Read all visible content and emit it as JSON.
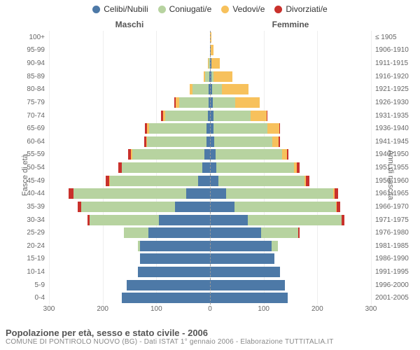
{
  "chart": {
    "type": "population-pyramid",
    "header_male": "Maschi",
    "header_female": "Femmine",
    "axis_left_label": "Fasce di età",
    "axis_right_label": "Anni di nascita",
    "x_max": 300,
    "x_ticks_left": [
      300,
      200,
      100,
      0
    ],
    "x_ticks_right": [
      0,
      100,
      200,
      300
    ],
    "colors": {
      "single": "#4d79a7",
      "married": "#b7d3a0",
      "widowed": "#f7c15c",
      "divorced": "#c9312c",
      "grid": "#eeeeee",
      "centerline": "#999999",
      "background": "#ffffff",
      "text": "#666666"
    },
    "legend": [
      {
        "label": "Celibi/Nubili",
        "color_key": "single"
      },
      {
        "label": "Coniugati/e",
        "color_key": "married"
      },
      {
        "label": "Vedovi/e",
        "color_key": "widowed"
      },
      {
        "label": "Divorziati/e",
        "color_key": "divorced"
      }
    ],
    "age_labels": [
      "100+",
      "95-99",
      "90-94",
      "85-89",
      "80-84",
      "75-79",
      "70-74",
      "65-69",
      "60-64",
      "55-59",
      "50-54",
      "45-49",
      "40-44",
      "35-39",
      "30-34",
      "25-29",
      "20-24",
      "15-19",
      "10-14",
      "5-9",
      "0-4"
    ],
    "birth_labels": [
      "≤ 1905",
      "1906-1910",
      "1911-1915",
      "1916-1920",
      "1921-1925",
      "1926-1930",
      "1931-1935",
      "1936-1940",
      "1941-1945",
      "1946-1950",
      "1951-1955",
      "1956-1960",
      "1961-1965",
      "1966-1970",
      "1971-1975",
      "1976-1980",
      "1981-1985",
      "1986-1990",
      "1991-1995",
      "1996-2000",
      "2001-2005"
    ],
    "rows": [
      {
        "m": {
          "s": 0,
          "c": 0,
          "w": 0,
          "d": 0
        },
        "f": {
          "s": 0,
          "c": 0,
          "w": 2,
          "d": 0
        }
      },
      {
        "m": {
          "s": 0,
          "c": 0,
          "w": 0,
          "d": 0
        },
        "f": {
          "s": 1,
          "c": 0,
          "w": 6,
          "d": 0
        }
      },
      {
        "m": {
          "s": 0,
          "c": 2,
          "w": 2,
          "d": 0
        },
        "f": {
          "s": 2,
          "c": 1,
          "w": 15,
          "d": 0
        }
      },
      {
        "m": {
          "s": 1,
          "c": 8,
          "w": 3,
          "d": 0
        },
        "f": {
          "s": 3,
          "c": 4,
          "w": 35,
          "d": 0
        }
      },
      {
        "m": {
          "s": 2,
          "c": 30,
          "w": 6,
          "d": 0
        },
        "f": {
          "s": 4,
          "c": 18,
          "w": 50,
          "d": 0
        }
      },
      {
        "m": {
          "s": 3,
          "c": 55,
          "w": 6,
          "d": 2
        },
        "f": {
          "s": 5,
          "c": 42,
          "w": 45,
          "d": 0
        }
      },
      {
        "m": {
          "s": 4,
          "c": 80,
          "w": 4,
          "d": 3
        },
        "f": {
          "s": 6,
          "c": 70,
          "w": 30,
          "d": 1
        }
      },
      {
        "m": {
          "s": 6,
          "c": 108,
          "w": 3,
          "d": 4
        },
        "f": {
          "s": 7,
          "c": 100,
          "w": 22,
          "d": 2
        }
      },
      {
        "m": {
          "s": 7,
          "c": 110,
          "w": 2,
          "d": 4
        },
        "f": {
          "s": 8,
          "c": 108,
          "w": 12,
          "d": 2
        }
      },
      {
        "m": {
          "s": 10,
          "c": 135,
          "w": 2,
          "d": 5
        },
        "f": {
          "s": 10,
          "c": 125,
          "w": 8,
          "d": 3
        }
      },
      {
        "m": {
          "s": 14,
          "c": 150,
          "w": 1,
          "d": 6
        },
        "f": {
          "s": 12,
          "c": 145,
          "w": 5,
          "d": 5
        }
      },
      {
        "m": {
          "s": 22,
          "c": 165,
          "w": 1,
          "d": 7
        },
        "f": {
          "s": 16,
          "c": 160,
          "w": 3,
          "d": 6
        }
      },
      {
        "m": {
          "s": 45,
          "c": 210,
          "w": 0,
          "d": 8
        },
        "f": {
          "s": 30,
          "c": 200,
          "w": 2,
          "d": 7
        }
      },
      {
        "m": {
          "s": 65,
          "c": 175,
          "w": 0,
          "d": 6
        },
        "f": {
          "s": 45,
          "c": 190,
          "w": 1,
          "d": 7
        }
      },
      {
        "m": {
          "s": 95,
          "c": 130,
          "w": 0,
          "d": 3
        },
        "f": {
          "s": 70,
          "c": 175,
          "w": 0,
          "d": 5
        }
      },
      {
        "m": {
          "s": 115,
          "c": 45,
          "w": 0,
          "d": 1
        },
        "f": {
          "s": 95,
          "c": 70,
          "w": 0,
          "d": 2
        }
      },
      {
        "m": {
          "s": 130,
          "c": 5,
          "w": 0,
          "d": 0
        },
        "f": {
          "s": 115,
          "c": 12,
          "w": 0,
          "d": 0
        }
      },
      {
        "m": {
          "s": 130,
          "c": 0,
          "w": 0,
          "d": 0
        },
        "f": {
          "s": 120,
          "c": 0,
          "w": 0,
          "d": 0
        }
      },
      {
        "m": {
          "s": 135,
          "c": 0,
          "w": 0,
          "d": 0
        },
        "f": {
          "s": 130,
          "c": 0,
          "w": 0,
          "d": 0
        }
      },
      {
        "m": {
          "s": 155,
          "c": 0,
          "w": 0,
          "d": 0
        },
        "f": {
          "s": 140,
          "c": 0,
          "w": 0,
          "d": 0
        }
      },
      {
        "m": {
          "s": 165,
          "c": 0,
          "w": 0,
          "d": 0
        },
        "f": {
          "s": 145,
          "c": 0,
          "w": 0,
          "d": 0
        }
      }
    ],
    "footer_title": "Popolazione per età, sesso e stato civile - 2006",
    "footer_sub": "COMUNE DI PONTIROLO NUOVO (BG) - Dati ISTAT 1° gennaio 2006 - Elaborazione TUTTITALIA.IT"
  }
}
